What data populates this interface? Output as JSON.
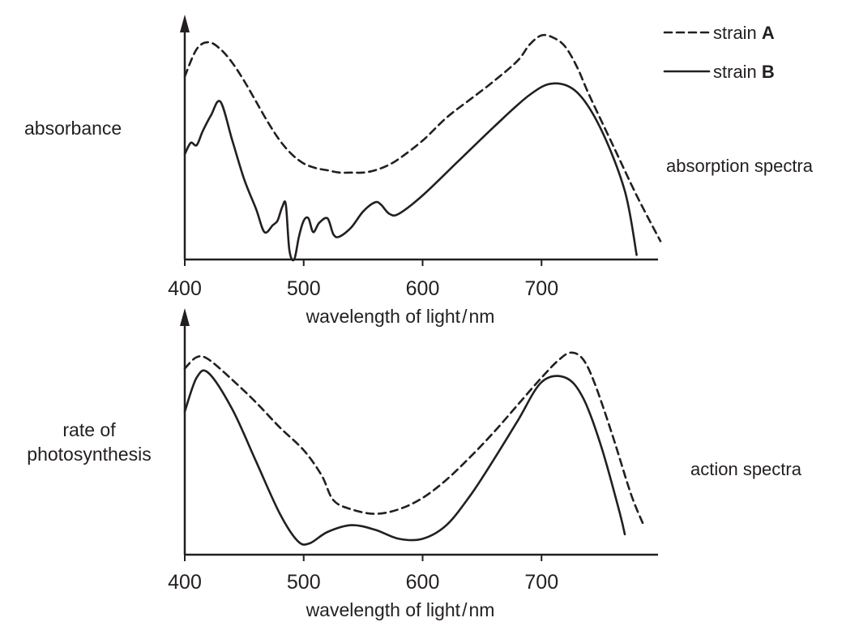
{
  "legend": {
    "a_prefix": "strain ",
    "a_letter": "A",
    "b_prefix": "strain ",
    "b_letter": "B"
  },
  "chart_data": [
    {
      "type": "line",
      "title": "absorption spectra",
      "xlabel": "wavelength of light / nm",
      "ylabel": "absorbance",
      "xlim": [
        400,
        800
      ],
      "ylim": [
        0,
        100
      ],
      "x_ticks": [
        400,
        500,
        600,
        700
      ],
      "y_ticks": [],
      "grid": false,
      "legend_position": "top-right",
      "series": [
        {
          "name": "strain A",
          "style": "dashed",
          "x": [
            400,
            410,
            420,
            430,
            440,
            450,
            460,
            470,
            480,
            490,
            500,
            510,
            520,
            530,
            540,
            550,
            560,
            570,
            580,
            600,
            620,
            640,
            660,
            680,
            690,
            700,
            710,
            720,
            730,
            740,
            760,
            780,
            800
          ],
          "y": [
            80,
            92,
            95,
            92,
            86,
            78,
            69,
            60,
            52,
            46,
            42,
            40,
            39,
            38,
            38,
            38,
            39,
            41,
            44,
            52,
            62,
            70,
            78,
            87,
            94,
            98,
            97,
            93,
            84,
            72,
            50,
            28,
            8
          ]
        },
        {
          "name": "strain B",
          "style": "solid",
          "x": [
            400,
            405,
            410,
            415,
            422,
            430,
            440,
            450,
            460,
            467,
            474,
            478,
            482,
            485,
            488,
            492,
            496,
            500,
            504,
            508,
            513,
            520,
            525,
            530,
            540,
            550,
            560,
            565,
            572,
            580,
            600,
            630,
            660,
            690,
            710,
            730,
            750,
            770,
            780
          ],
          "y": [
            46,
            51,
            50,
            56,
            63,
            69,
            52,
            35,
            22,
            12,
            15,
            17,
            23,
            24,
            4,
            0,
            10,
            17,
            18,
            12,
            16,
            18,
            11,
            10,
            14,
            21,
            25,
            24,
            20,
            20,
            28,
            43,
            58,
            72,
            77,
            73,
            57,
            30,
            2
          ]
        }
      ]
    },
    {
      "type": "line",
      "title": "action spectra",
      "xlabel": "wavelength of light / nm",
      "ylabel": "rate of photosynthesis",
      "xlim": [
        400,
        800
      ],
      "ylim": [
        0,
        100
      ],
      "x_ticks": [
        400,
        500,
        600,
        700
      ],
      "y_ticks": [],
      "grid": false,
      "legend_position": "top-right",
      "series": [
        {
          "name": "strain A",
          "style": "dashed",
          "x": [
            400,
            410,
            420,
            440,
            460,
            480,
            500,
            515,
            525,
            540,
            560,
            580,
            600,
            620,
            640,
            660,
            680,
            700,
            715,
            725,
            735,
            745,
            760,
            775,
            785
          ],
          "y": [
            82,
            87,
            86,
            77,
            67,
            56,
            46,
            35,
            24,
            20,
            18,
            20,
            25,
            33,
            43,
            54,
            66,
            78,
            86,
            89,
            86,
            75,
            52,
            27,
            14
          ]
        },
        {
          "name": "strain B",
          "style": "solid",
          "x": [
            400,
            410,
            420,
            440,
            460,
            480,
            495,
            505,
            520,
            540,
            560,
            580,
            600,
            620,
            640,
            660,
            680,
            700,
            720,
            735,
            750,
            765,
            770
          ],
          "y": [
            63,
            78,
            80,
            64,
            41,
            18,
            6,
            5,
            10,
            13,
            11,
            7,
            7,
            13,
            26,
            42,
            59,
            76,
            78,
            69,
            48,
            20,
            9
          ]
        }
      ]
    }
  ]
}
